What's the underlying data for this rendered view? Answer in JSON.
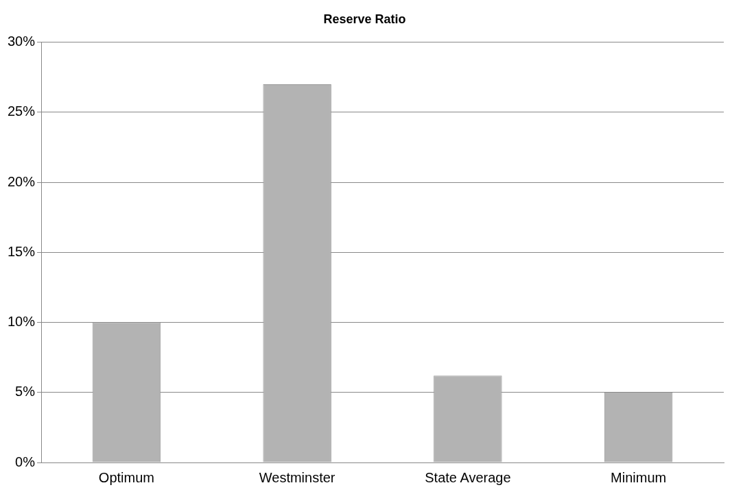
{
  "chart_data": {
    "type": "bar",
    "title": "Reserve Ratio",
    "categories": [
      "Optimum",
      "Westminster",
      "State Average",
      "Minimum"
    ],
    "values": [
      10,
      27,
      6.2,
      5
    ],
    "color": "#b3b3b3",
    "ylim": [
      0,
      30
    ],
    "yticks": [
      {
        "value": 0,
        "label": "0%"
      },
      {
        "value": 5,
        "label": "5%"
      },
      {
        "value": 10,
        "label": "10%"
      },
      {
        "value": 15,
        "label": "15%"
      },
      {
        "value": 20,
        "label": "20%"
      },
      {
        "value": 25,
        "label": "25%"
      },
      {
        "value": 30,
        "label": "30%"
      }
    ],
    "grid": "y",
    "legend": false
  }
}
